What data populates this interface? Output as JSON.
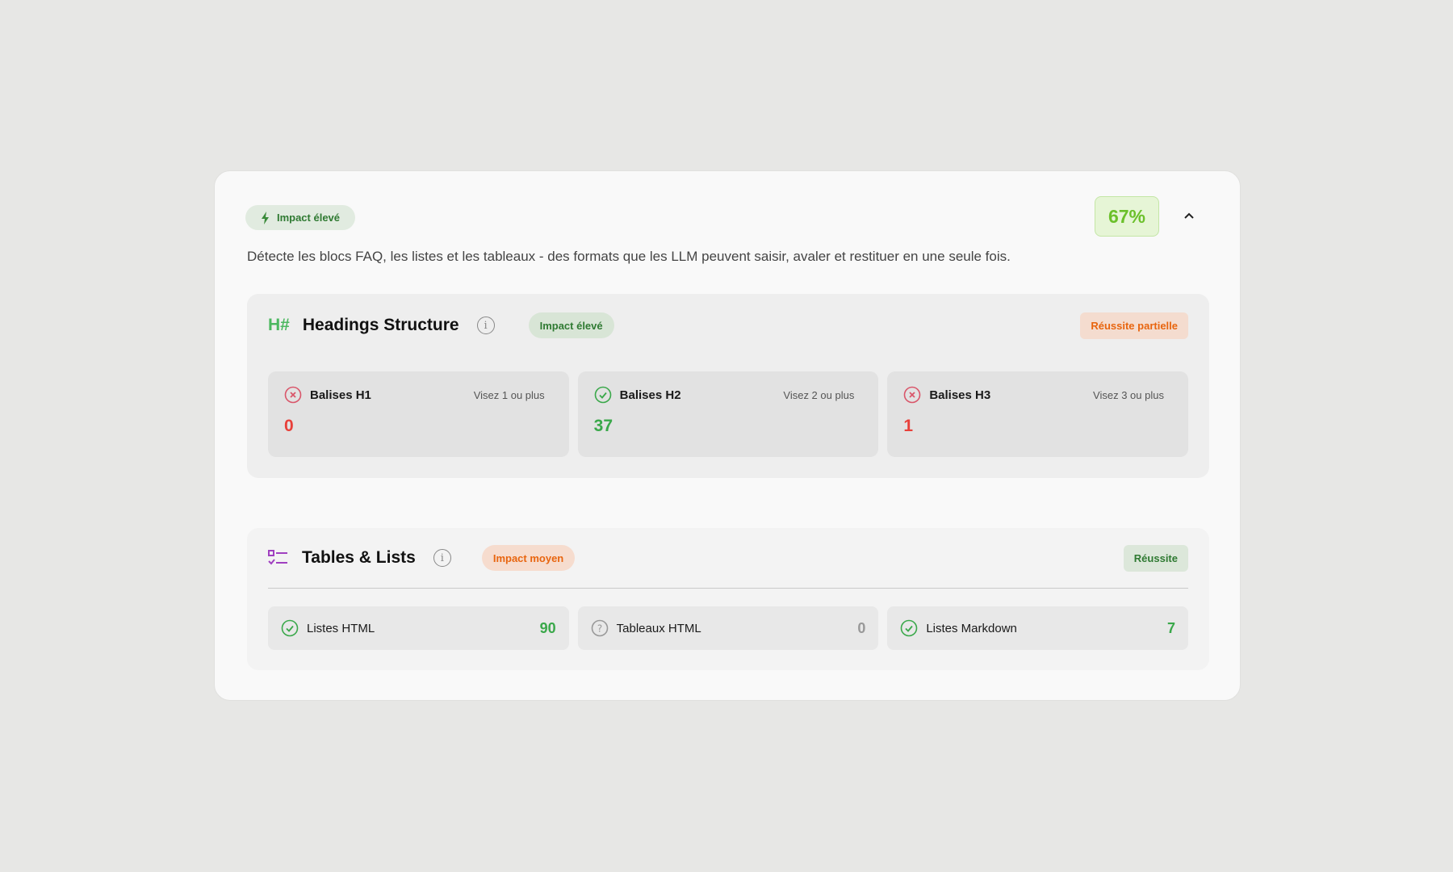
{
  "header": {
    "impact_label": "Impact élevé",
    "score": "67%",
    "description": "Détecte les blocs FAQ, les listes et les tableaux - des formats que les LLM peuvent saisir, avaler et restituer en une seule fois."
  },
  "headings": {
    "icon_text": "H#",
    "title": "Headings Structure",
    "impact": "Impact élevé",
    "status": "Réussite partielle",
    "items": [
      {
        "label": "Balises H1",
        "target": "Visez 1 ou plus",
        "value": "0",
        "state": "fail"
      },
      {
        "label": "Balises H2",
        "target": "Visez 2 ou plus",
        "value": "37",
        "state": "pass"
      },
      {
        "label": "Balises H3",
        "target": "Visez 3 ou plus",
        "value": "1",
        "state": "fail"
      }
    ]
  },
  "tables": {
    "title": "Tables & Lists",
    "impact": "Impact moyen",
    "status": "Réussite",
    "items": [
      {
        "label": "Listes HTML",
        "value": "90",
        "state": "pass"
      },
      {
        "label": "Tableaux HTML",
        "value": "0",
        "state": "unknown"
      },
      {
        "label": "Listes Markdown",
        "value": "7",
        "state": "pass"
      }
    ]
  },
  "colors": {
    "pass": "#3aa84a",
    "fail": "#e8403a",
    "accent": "#6bc02a",
    "orange": "#e8650f",
    "purple": "#a040c0"
  }
}
